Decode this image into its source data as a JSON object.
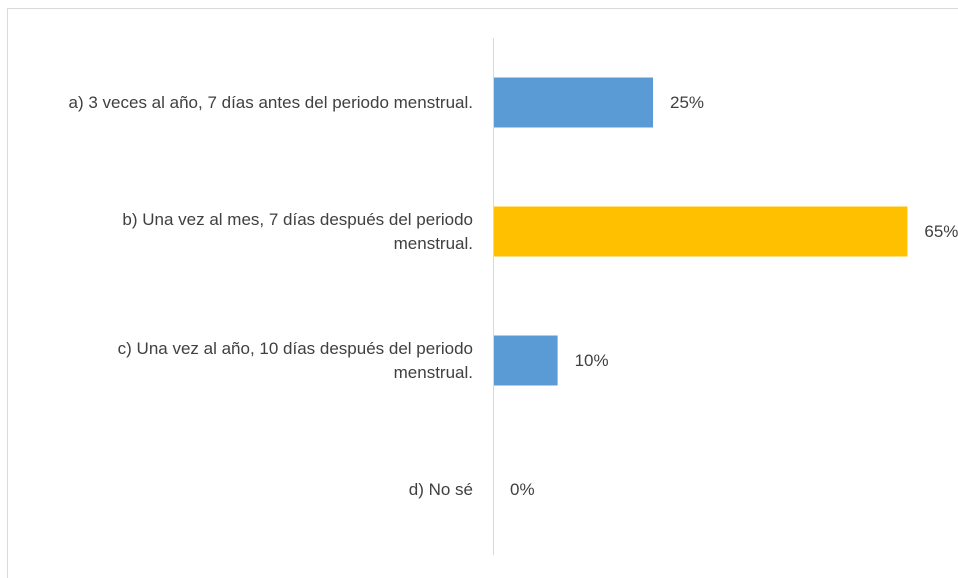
{
  "chart_data": {
    "type": "bar",
    "orientation": "horizontal",
    "categories": [
      "a) 3 veces al año, 7 días antes del periodo menstrual.",
      "b) Una vez al mes, 7 días después del periodo menstrual.",
      "c) Una vez al año, 10 días después del periodo menstrual.",
      "d) No sé"
    ],
    "values": [
      25,
      65,
      10,
      0
    ],
    "value_labels": [
      "25%",
      "65%",
      "10%",
      "0%"
    ],
    "colors": [
      "#5b9bd5",
      "#ffc000",
      "#5b9bd5",
      "#5b9bd5"
    ]
  }
}
